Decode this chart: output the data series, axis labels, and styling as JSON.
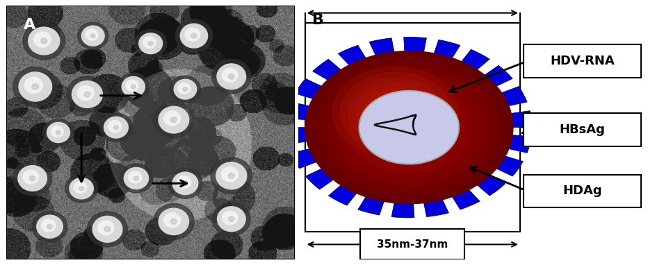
{
  "fig_width": 9.32,
  "fig_height": 3.82,
  "dpi": 100,
  "panel_A_label": "A",
  "panel_B_label": "B",
  "label_fontsize": 16,
  "label_fontweight": "bold",
  "outer_ring_color": "#0000dd",
  "outer_ring_edge_color": "#000088",
  "red_body_color": "#cc1100",
  "red_body_dark": "#7a0000",
  "inner_circle_color": "#c8c8e8",
  "inner_circle_edge": "#aaaaaa",
  "annotation_box_color": "#ffffff",
  "annotation_box_edge": "#000000",
  "annotation_labels": [
    "HDV-RNA",
    "HBsAg",
    "HDAg"
  ],
  "annotation_fontsize": 13,
  "annotation_fontweight": "bold",
  "size_label": "35nm-37nm",
  "size_fontsize": 11,
  "size_fontweight": "bold",
  "arrow_color": "#000000",
  "bg_color": "#ffffff",
  "noise_seed": 42
}
